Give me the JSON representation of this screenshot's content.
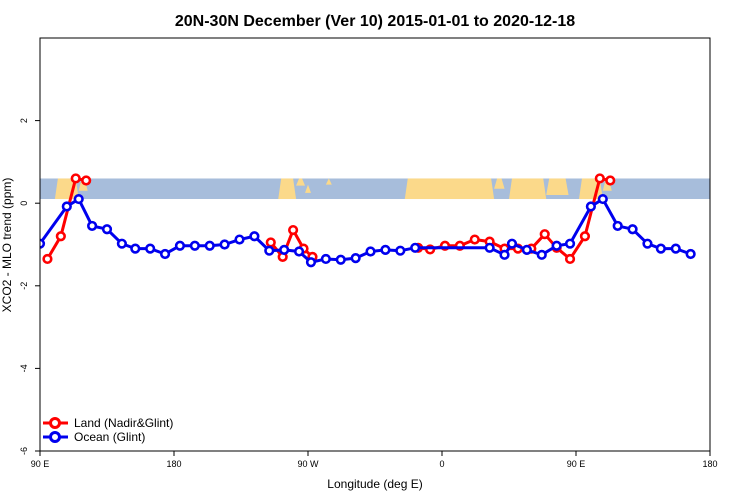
{
  "chart_data": {
    "type": "line",
    "title": "20N-30N December (Ver 10)   2015-01-01 to 2020-12-18",
    "xlabel": "Longitude (deg E)",
    "ylabel": "XCO2 - MLO trend (ppm)",
    "xlim": [
      90,
      540
    ],
    "ylim": [
      -6,
      4
    ],
    "x_ticks": [
      {
        "value": 90,
        "label": "90 E"
      },
      {
        "value": 180,
        "label": "180"
      },
      {
        "value": 270,
        "label": "90 W"
      },
      {
        "value": 360,
        "label": "0"
      },
      {
        "value": 450,
        "label": "90 E"
      },
      {
        "value": 540,
        "label": "180"
      }
    ],
    "y_ticks": [
      {
        "value": -6,
        "label": "-6"
      },
      {
        "value": -4,
        "label": "-4"
      },
      {
        "value": -2,
        "label": "-2"
      },
      {
        "value": 0,
        "label": "0"
      },
      {
        "value": 2,
        "label": "2"
      }
    ],
    "map_band": {
      "ymin": 0.1,
      "ymax": 0.6,
      "ocean_color": "#a7bddb",
      "land_color": "#fbd98a"
    },
    "series": [
      {
        "name": "Land (Nadir&Glint)",
        "color": "#ff0000",
        "segments": [
          [
            [
              95,
              -1.35
            ],
            [
              104,
              -0.8
            ],
            [
              114,
              0.6
            ],
            [
              121,
              0.55
            ]
          ],
          [
            [
              245,
              -0.95
            ],
            [
              253,
              -1.3
            ],
            [
              260,
              -0.65
            ],
            [
              267,
              -1.1
            ],
            [
              273,
              -1.3
            ]
          ],
          [
            [
              344,
              -1.08
            ],
            [
              352,
              -1.12
            ],
            [
              362,
              -1.03
            ],
            [
              372,
              -1.03
            ],
            [
              382,
              -0.88
            ],
            [
              392,
              -0.93
            ],
            [
              402,
              -1.1
            ],
            [
              411,
              -1.1
            ],
            [
              420,
              -1.1
            ],
            [
              429,
              -0.75
            ],
            [
              437,
              -1.08
            ],
            [
              446,
              -1.35
            ],
            [
              456,
              -0.8
            ],
            [
              466,
              0.6
            ],
            [
              473,
              0.55
            ]
          ]
        ]
      },
      {
        "name": "Ocean (Glint)",
        "color": "#0000ee",
        "segments": [
          [
            [
              90,
              -0.98
            ],
            [
              108,
              -0.08
            ],
            [
              116,
              0.1
            ],
            [
              125,
              -0.55
            ],
            [
              135,
              -0.63
            ],
            [
              145,
              -0.98
            ],
            [
              154,
              -1.1
            ],
            [
              164,
              -1.1
            ],
            [
              174,
              -1.23
            ],
            [
              184,
              -1.03
            ],
            [
              194,
              -1.03
            ],
            [
              204,
              -1.03
            ],
            [
              214,
              -1.0
            ],
            [
              224,
              -0.88
            ],
            [
              234,
              -0.8
            ],
            [
              244,
              -1.15
            ],
            [
              254,
              -1.13
            ],
            [
              264,
              -1.17
            ],
            [
              272,
              -1.43
            ],
            [
              282,
              -1.35
            ],
            [
              292,
              -1.37
            ],
            [
              302,
              -1.33
            ],
            [
              312,
              -1.17
            ],
            [
              322,
              -1.13
            ],
            [
              332,
              -1.15
            ],
            [
              342,
              -1.08
            ],
            [
              392,
              -1.08
            ],
            [
              402,
              -1.25
            ],
            [
              407,
              -0.98
            ],
            [
              417,
              -1.13
            ],
            [
              427,
              -1.25
            ],
            [
              437,
              -1.03
            ],
            [
              446,
              -0.98
            ],
            [
              460,
              -0.08
            ],
            [
              468,
              0.1
            ],
            [
              478,
              -0.55
            ],
            [
              488,
              -0.63
            ],
            [
              498,
              -0.98
            ],
            [
              507,
              -1.1
            ],
            [
              517,
              -1.1
            ],
            [
              527,
              -1.23
            ]
          ]
        ]
      }
    ],
    "legend": {
      "position": "bottom-left"
    }
  }
}
